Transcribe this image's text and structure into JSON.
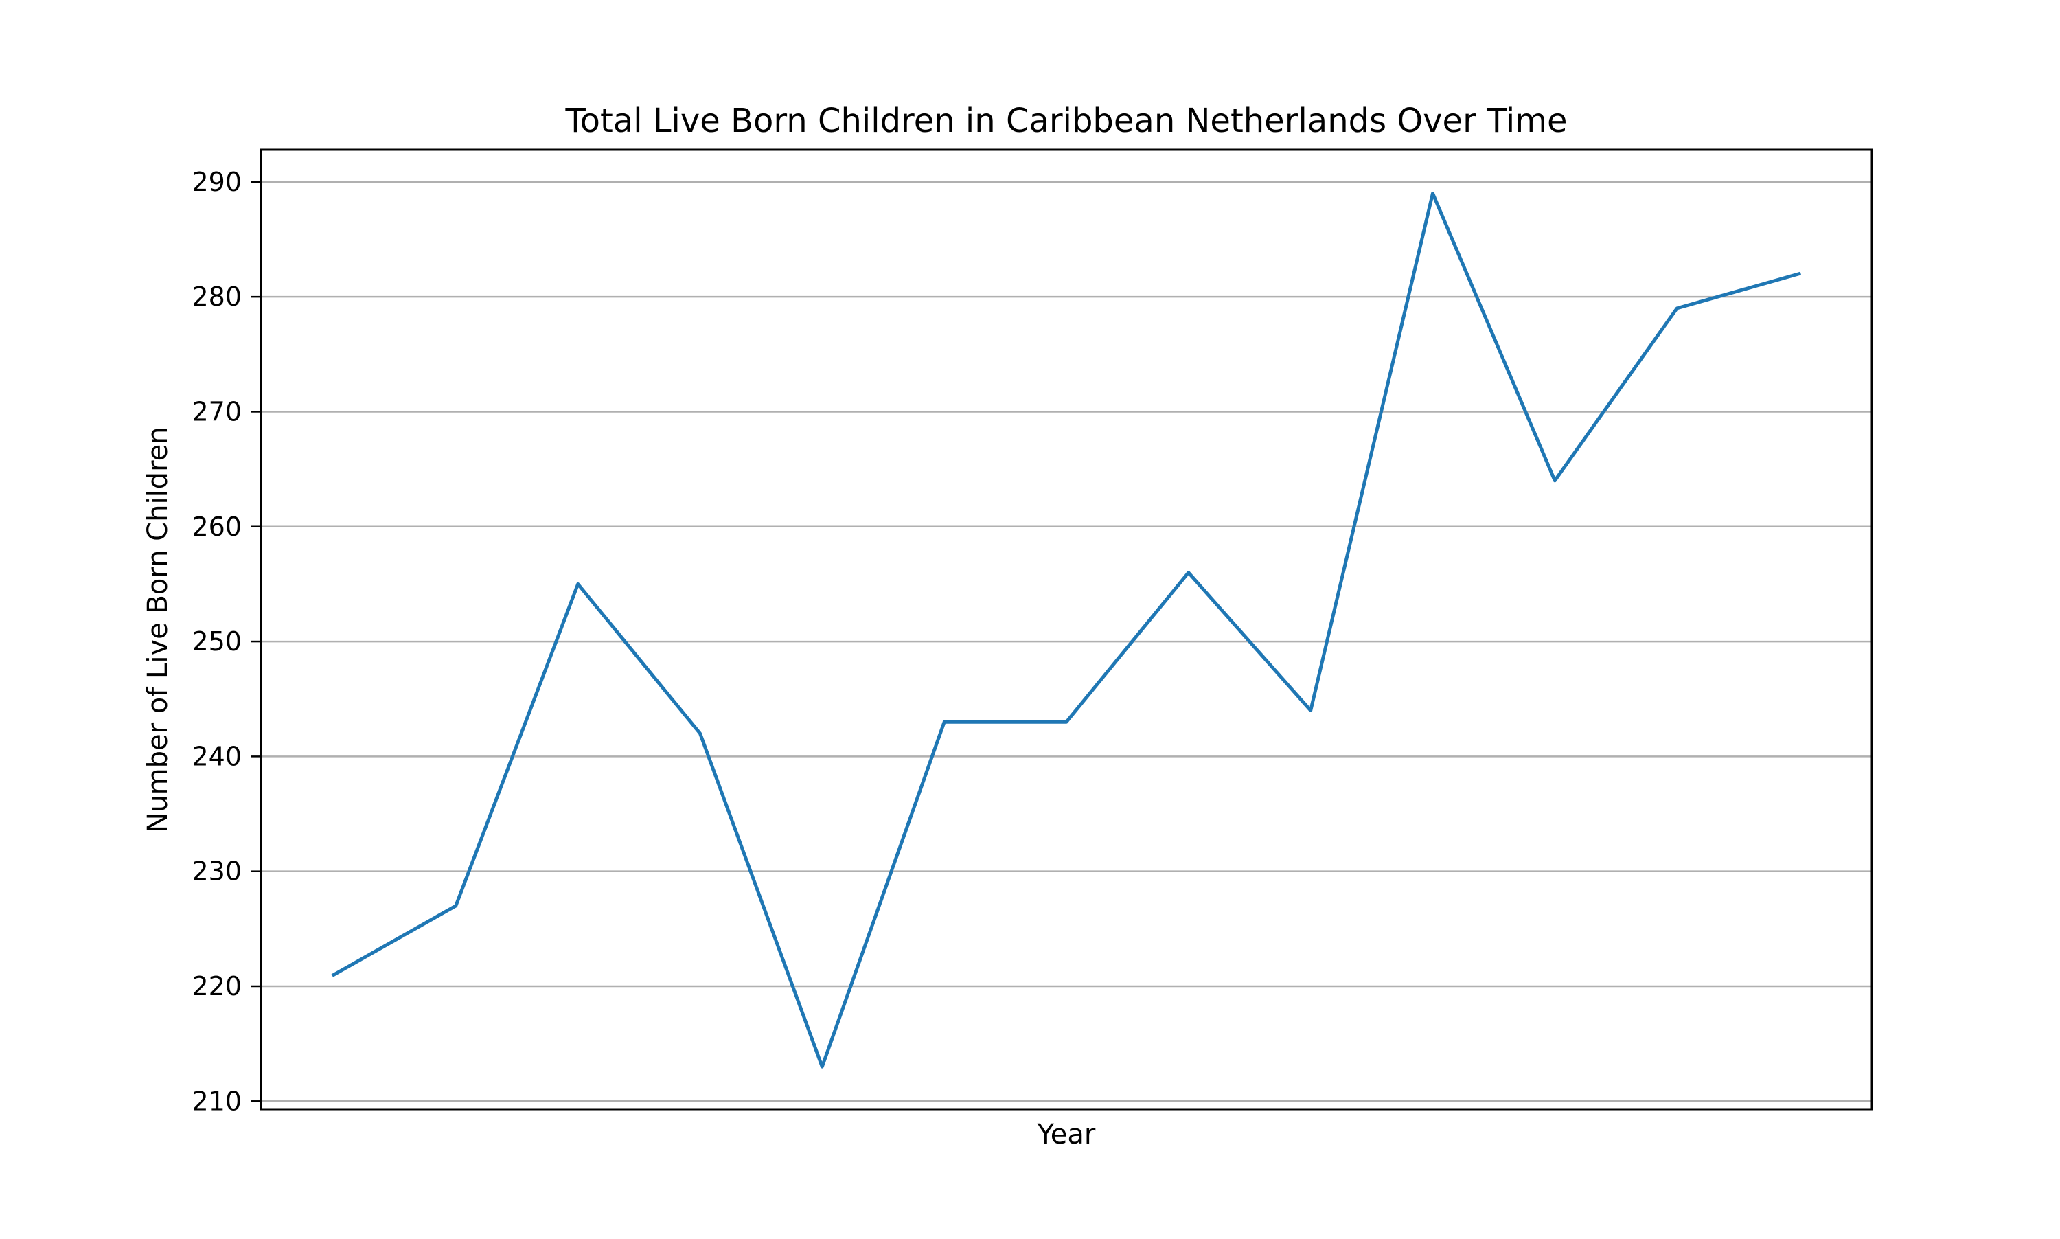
{
  "chart_data": {
    "type": "line",
    "title": "Total Live Born Children in Caribbean Netherlands Over Time",
    "xlabel": "Year",
    "ylabel": "Number of Live Born Children",
    "x_tick_labels_visible": false,
    "ylim": [
      209.3,
      292.8
    ],
    "yticks": [
      210,
      220,
      230,
      240,
      250,
      260,
      270,
      280,
      290
    ],
    "grid": "horizontal",
    "legend": "none",
    "series": [
      {
        "color": "#1f77b4",
        "values": [
          221,
          227,
          255,
          242,
          213,
          243,
          243,
          256,
          244,
          289,
          264,
          279,
          282
        ]
      }
    ]
  }
}
